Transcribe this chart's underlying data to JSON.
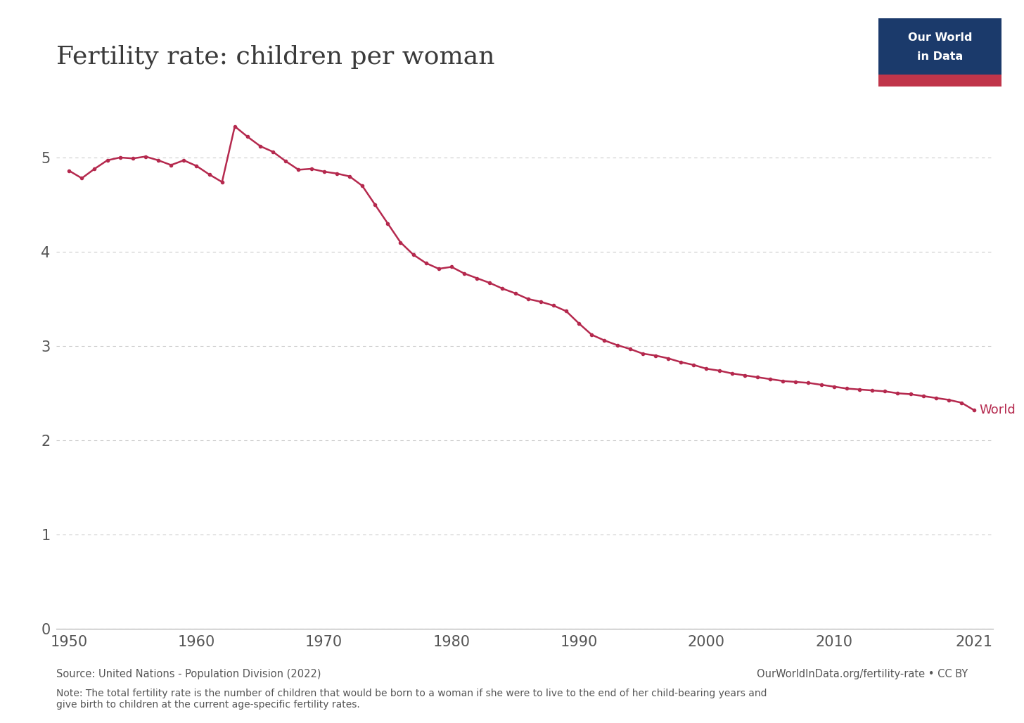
{
  "title": "Fertility rate: children per woman",
  "line_color": "#b5294e",
  "background_color": "#ffffff",
  "grid_color": "#cccccc",
  "label_color": "#555555",
  "years": [
    1950,
    1951,
    1952,
    1953,
    1954,
    1955,
    1956,
    1957,
    1958,
    1959,
    1960,
    1961,
    1962,
    1963,
    1964,
    1965,
    1966,
    1967,
    1968,
    1969,
    1970,
    1971,
    1972,
    1973,
    1974,
    1975,
    1976,
    1977,
    1978,
    1979,
    1980,
    1981,
    1982,
    1983,
    1984,
    1985,
    1986,
    1987,
    1988,
    1989,
    1990,
    1991,
    1992,
    1993,
    1994,
    1995,
    1996,
    1997,
    1998,
    1999,
    2000,
    2001,
    2002,
    2003,
    2004,
    2005,
    2006,
    2007,
    2008,
    2009,
    2010,
    2011,
    2012,
    2013,
    2014,
    2015,
    2016,
    2017,
    2018,
    2019,
    2020,
    2021
  ],
  "values": [
    4.86,
    4.78,
    4.88,
    4.97,
    5.0,
    4.99,
    5.01,
    4.97,
    4.92,
    4.97,
    4.91,
    4.82,
    4.74,
    5.33,
    5.22,
    5.12,
    5.06,
    4.96,
    4.87,
    4.88,
    4.85,
    4.83,
    4.8,
    4.7,
    4.5,
    4.3,
    4.1,
    3.97,
    3.88,
    3.82,
    3.84,
    3.77,
    3.72,
    3.67,
    3.61,
    3.56,
    3.5,
    3.47,
    3.43,
    3.37,
    3.24,
    3.12,
    3.06,
    3.01,
    2.97,
    2.92,
    2.9,
    2.87,
    2.83,
    2.8,
    2.76,
    2.74,
    2.71,
    2.69,
    2.67,
    2.65,
    2.63,
    2.62,
    2.61,
    2.59,
    2.57,
    2.55,
    2.54,
    2.53,
    2.52,
    2.5,
    2.49,
    2.47,
    2.45,
    2.43,
    2.4,
    2.32
  ],
  "yticks": [
    0,
    1,
    2,
    3,
    4,
    5
  ],
  "xticks": [
    1950,
    1960,
    1970,
    1980,
    1990,
    2000,
    2010,
    2021
  ],
  "xlim": [
    1949,
    2022.5
  ],
  "ylim": [
    0,
    5.75
  ],
  "source_text": "Source: United Nations - Population Division (2022)",
  "url_text": "OurWorldInData.org/fertility-rate • CC BY",
  "note_text": "Note: The total fertility rate is the number of children that would be born to a woman if she were to live to the end of her child-bearing years and\ngive birth to children at the current age-specific fertility rates.",
  "series_label": "World",
  "owid_navy": "#1b3a6b",
  "owid_red": "#c0354a",
  "title_color": "#3a3a3a"
}
